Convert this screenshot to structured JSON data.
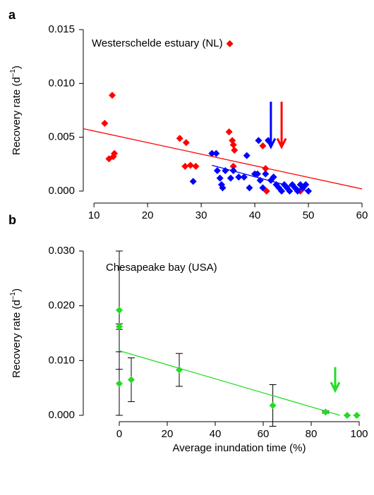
{
  "chart_data": [
    {
      "type": "scatter",
      "panel_label": "a",
      "annotation": "Westerschelde estuary (NL)",
      "y_label": [
        "Recovery rate (d",
        "–1",
        ")"
      ],
      "xlim": [
        8,
        60
      ],
      "xticks": [
        10,
        20,
        30,
        40,
        50,
        60
      ],
      "ylim": [
        0,
        0.015
      ],
      "yticks": [
        {
          "value": 0,
          "label": "0.000"
        },
        0.005,
        {
          "value": 0.01,
          "label": "0.010"
        },
        0.015
      ],
      "series": [
        {
          "color": "#ff0000",
          "x": [
            12,
            13.4,
            12.8,
            13.8,
            13.6,
            26,
            27.2,
            27,
            28,
            29,
            35.2,
            35.8,
            36,
            36.2,
            36,
            41.5,
            42,
            42.2,
            48.5
          ],
          "values": [
            0.0063,
            0.0089,
            0.003,
            0.0035,
            0.0032,
            0.0049,
            0.0045,
            0.0023,
            0.0024,
            0.0023,
            0.0055,
            0.0047,
            0.0043,
            0.0038,
            0.0023,
            0.0042,
            0.0021,
            0.0,
            0.0
          ]
        },
        {
          "color": "#0000ff",
          "x": [
            28.5,
            32,
            32.8,
            33,
            33.5,
            33.8,
            34,
            34.5,
            35.5,
            36,
            37,
            38,
            38.5,
            39,
            40,
            40.5,
            40.7,
            41,
            41.5,
            42,
            42.5,
            43,
            43.5,
            44,
            44.5,
            45,
            45.5,
            46,
            46.5,
            47,
            47.5,
            48,
            48.5,
            49,
            49.5,
            50
          ],
          "values": [
            0.0009,
            0.0035,
            0.0035,
            0.0019,
            0.0012,
            0.0006,
            0.0003,
            0.0019,
            0.0012,
            0.0019,
            0.0013,
            0.0013,
            0.0033,
            0.0003,
            0.0016,
            0.0016,
            0.0047,
            0.001,
            0.0003,
            0.0016,
            0.0047,
            0.001,
            0.0013,
            0.0006,
            0.0003,
            0.0,
            0.0006,
            0.0003,
            0.0,
            0.0006,
            0.0003,
            0.0,
            0.0006,
            0.0003,
            0.0006,
            0.0
          ]
        },
        {
          "type": "line",
          "color": "#ff0000",
          "x": [
            8,
            60
          ],
          "values": [
            0.0058,
            0.0002
          ]
        },
        {
          "type": "line",
          "color": "#0000ff",
          "x": [
            32,
            50
          ],
          "values": [
            0.0024,
            0.0
          ]
        }
      ],
      "arrows": [
        {
          "color": "#0000ff",
          "x": 43,
          "values": [
            0.0083,
            0.0041
          ]
        },
        {
          "color": "#ff0000",
          "x": 45,
          "values": [
            0.0083,
            0.0041
          ]
        }
      ]
    },
    {
      "type": "scatter",
      "panel_label": "b",
      "annotation": "Chesapeake bay (USA)",
      "y_label": [
        "Recovery rate (d",
        "–1",
        ")"
      ],
      "x_label": "Average inundation time (%)",
      "xlim": [
        -15,
        100
      ],
      "xticks": [
        0,
        20,
        40,
        60,
        80,
        100
      ],
      "ylim": [
        0,
        0.03
      ],
      "yticks": [
        {
          "value": 0,
          "label": "0.000"
        },
        {
          "value": 0.01,
          "label": "0.010"
        },
        {
          "value": 0.02,
          "label": "0.020"
        },
        {
          "value": 0.03,
          "label": "0.030"
        }
      ],
      "series": [
        {
          "color": "#22dd22",
          "x": [
            0,
            0,
            0,
            5,
            25,
            64,
            86,
            95,
            99
          ],
          "values": [
            0.0192,
            0.0162,
            0.0058,
            0.0065,
            0.0083,
            0.0018,
            0.0006,
            0.0,
            0.0
          ],
          "errors": [
            0.0108,
            0.0005,
            0.0058,
            0.004,
            0.003,
            0.0038,
            0.0002,
            0,
            0
          ]
        },
        {
          "type": "line",
          "color": "#22dd22",
          "x": [
            0,
            92
          ],
          "values": [
            0.0118,
            0.0
          ]
        }
      ],
      "arrows": [
        {
          "color": "#22dd22",
          "x": 90,
          "values": [
            0.0088,
            0.0045
          ]
        }
      ]
    }
  ]
}
